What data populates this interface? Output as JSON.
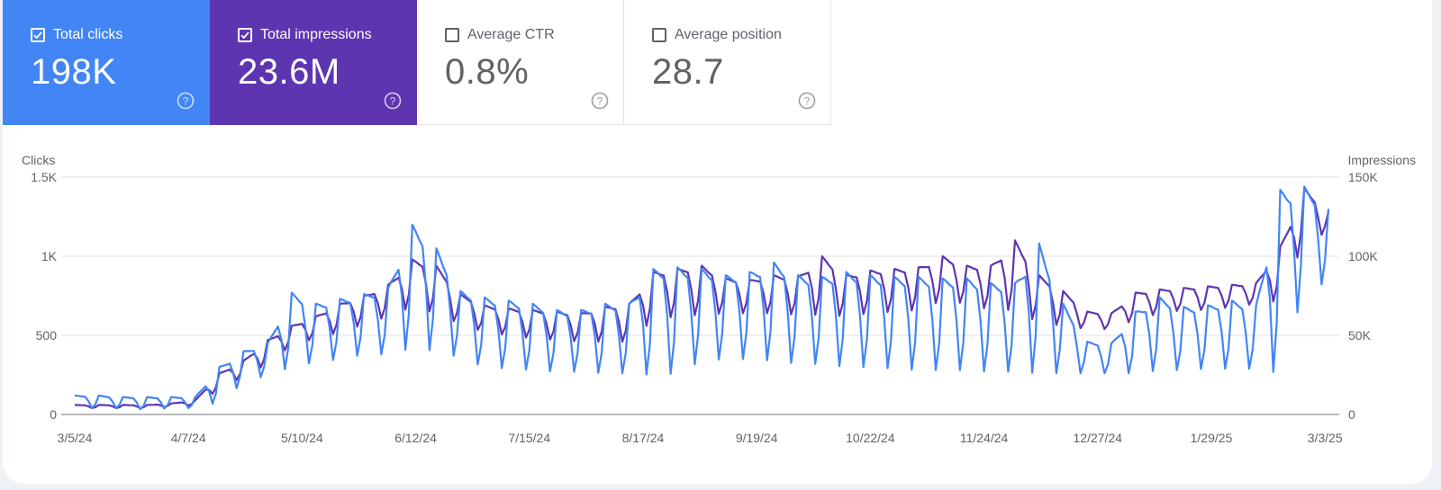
{
  "metrics": [
    {
      "label": "Total clicks",
      "value": "198K",
      "checked": true
    },
    {
      "label": "Total impressions",
      "value": "23.6M",
      "checked": true
    },
    {
      "label": "Average CTR",
      "value": "0.8%",
      "checked": false
    },
    {
      "label": "Average position",
      "value": "28.7",
      "checked": false
    }
  ],
  "colors": {
    "clicks": "#4285f4",
    "impressions": "#5e35b1",
    "grid": "#e0e0e0",
    "axis": "#757575"
  },
  "chart_data": {
    "type": "line",
    "left_axis_title": "Clicks",
    "right_axis_title": "Impressions",
    "left_ticks": [
      "0",
      "500",
      "1K",
      "1.5K"
    ],
    "right_ticks": [
      "0",
      "50K",
      "100K",
      "150K"
    ],
    "ylim_left": [
      0,
      1500
    ],
    "ylim_right": [
      0,
      150000
    ],
    "x_ticks": [
      "3/5/24",
      "4/7/24",
      "5/10/24",
      "6/12/24",
      "7/15/24",
      "8/17/24",
      "9/19/24",
      "10/22/24",
      "11/24/24",
      "12/27/24",
      "1/29/25",
      "3/3/25"
    ],
    "grid": true,
    "x_dates_weekly": [
      "3/5/24",
      "3/12/24",
      "3/19/24",
      "3/26/24",
      "4/2/24",
      "4/9/24",
      "4/16/24",
      "4/23/24",
      "4/30/24",
      "5/7/24",
      "5/14/24",
      "5/21/24",
      "5/28/24",
      "6/4/24",
      "6/11/24",
      "6/18/24",
      "6/25/24",
      "7/2/24",
      "7/9/24",
      "7/16/24",
      "7/23/24",
      "7/30/24",
      "8/6/24",
      "8/13/24",
      "8/20/24",
      "8/27/24",
      "9/3/24",
      "9/10/24",
      "9/17/24",
      "9/24/24",
      "10/1/24",
      "10/8/24",
      "10/15/24",
      "10/22/24",
      "10/29/24",
      "11/5/24",
      "11/12/24",
      "11/19/24",
      "11/26/24",
      "12/3/24",
      "12/10/24",
      "12/17/24",
      "12/24/24",
      "12/31/24",
      "1/7/25",
      "1/14/25",
      "1/21/25",
      "1/28/25",
      "2/4/25",
      "2/11/25",
      "2/18/25",
      "2/25/25",
      "3/3/25"
    ],
    "series": [
      {
        "name": "Total clicks",
        "weekly_peak": [
          120,
          120,
          110,
          110,
          110,
          110,
          300,
          400,
          450,
          770,
          700,
          730,
          760,
          800,
          1200,
          1050,
          780,
          740,
          720,
          700,
          660,
          660,
          700,
          700,
          920,
          930,
          920,
          880,
          900,
          960,
          880,
          870,
          900,
          880,
          870,
          870,
          860,
          860,
          830,
          830,
          1080,
          700,
          460,
          450,
          650,
          740,
          680,
          690,
          720,
          690,
          1420,
          1440,
          1300
        ],
        "weekly_trough": [
          40,
          40,
          40,
          30,
          40,
          40,
          80,
          200,
          250,
          300,
          330,
          350,
          380,
          380,
          420,
          400,
          360,
          300,
          290,
          280,
          270,
          270,
          260,
          260,
          250,
          260,
          340,
          350,
          350,
          340,
          320,
          320,
          300,
          300,
          290,
          280,
          280,
          280,
          270,
          270,
          260,
          260,
          260,
          260,
          260,
          280,
          280,
          290,
          290,
          290,
          260,
          800,
          830
        ]
      },
      {
        "name": "Total impressions",
        "weekly_peak": [
          6000,
          6000,
          6000,
          6000,
          7000,
          9000,
          26000,
          34000,
          47000,
          56000,
          62000,
          70000,
          75000,
          82000,
          98000,
          94000,
          76000,
          69000,
          67000,
          66000,
          65000,
          64000,
          68000,
          70000,
          90000,
          92000,
          94000,
          86000,
          85000,
          88000,
          87000,
          100000,
          88000,
          91000,
          92000,
          93000,
          100000,
          94000,
          94000,
          110000,
          88000,
          78000,
          65000,
          64000,
          77000,
          79000,
          80000,
          81000,
          82000,
          83000,
          106000,
          143000,
          128000
        ],
        "weekly_trough": [
          4000,
          4000,
          4000,
          4000,
          5000,
          6000,
          16000,
          24000,
          32000,
          44000,
          48000,
          52000,
          57000,
          62000,
          68000,
          64000,
          57000,
          52000,
          50000,
          48000,
          47000,
          46000,
          46000,
          46000,
          60000,
          62000,
          63000,
          64000,
          64000,
          64000,
          63000,
          63000,
          62000,
          64000,
          65000,
          66000,
          72000,
          70000,
          66000,
          66000,
          58000,
          56000,
          54000,
          54000,
          60000,
          64000,
          66000,
          66000,
          68000,
          70000,
          72000,
          110000,
          115000
        ]
      }
    ]
  }
}
